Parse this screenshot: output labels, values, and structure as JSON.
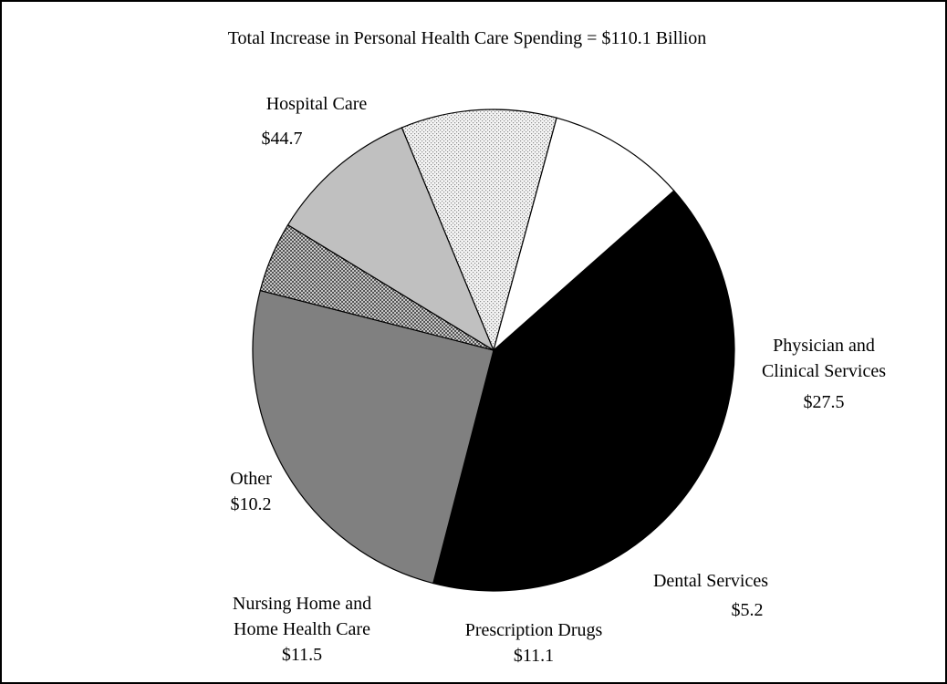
{
  "chart_data": {
    "type": "pie",
    "title": "Total Increase in Personal Health Care Spending = $110.1 Billion",
    "slices": [
      {
        "label": [
          "Hospital Care"
        ],
        "value_label": "$44.7",
        "value": 44.7,
        "fill": "#000000",
        "pattern": ""
      },
      {
        "label": [
          "Physician and",
          "Clinical Services"
        ],
        "value_label": "$27.5",
        "value": 27.5,
        "fill": "#808080",
        "pattern": ""
      },
      {
        "label": [
          "Dental Services"
        ],
        "value_label": "$5.2",
        "value": 5.2,
        "fill": "#a0a0a0",
        "pattern": "dots-dense"
      },
      {
        "label": [
          "Prescription Drugs"
        ],
        "value_label": "$11.1",
        "value": 11.1,
        "fill": "#c0c0c0",
        "pattern": ""
      },
      {
        "label": [
          "Nursing Home and",
          "Home Health Care"
        ],
        "value_label": "$11.5",
        "value": 11.5,
        "fill": "#e6e6e6",
        "pattern": "dots-light"
      },
      {
        "label": [
          "Other"
        ],
        "value_label": "$10.2",
        "value": 10.2,
        "fill": "#ffffff",
        "pattern": ""
      }
    ]
  }
}
